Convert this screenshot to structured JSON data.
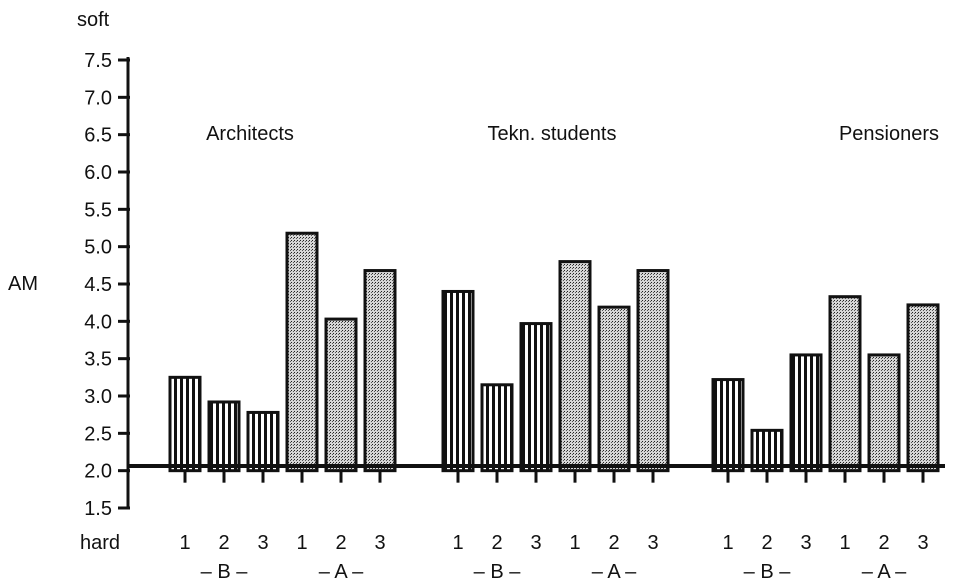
{
  "chart_data": {
    "type": "bar",
    "y_axis": {
      "label": "AM",
      "top_label": "soft",
      "bottom_label": "hard",
      "ticks": [
        "7.5",
        "7.0",
        "6.5",
        "6.0",
        "5.5",
        "5.0",
        "4.5",
        "4.0",
        "3.5",
        "3.0",
        "2.5",
        "2.0",
        "1.5"
      ],
      "ylim": [
        1.5,
        7.5
      ],
      "baseline": 2.0
    },
    "category_labels": [
      "1",
      "2",
      "3",
      "1",
      "2",
      "3"
    ],
    "subgroup_labels": [
      {
        "text": "–  B  –"
      },
      {
        "text": "–  A  –"
      }
    ],
    "groups": [
      {
        "name": "Architects",
        "values": [
          3.25,
          2.92,
          2.78,
          5.18,
          4.03,
          4.68
        ]
      },
      {
        "name": "Tekn. students",
        "values": [
          4.4,
          3.15,
          3.97,
          4.8,
          4.19,
          4.68
        ]
      },
      {
        "name": "Pensioners",
        "values": [
          3.22,
          2.54,
          3.55,
          4.33,
          3.55,
          4.22
        ]
      }
    ],
    "series_patterns": [
      "stripes",
      "stripes",
      "stripes",
      "dots",
      "dots",
      "dots"
    ],
    "colors": {
      "ink": "#111111",
      "background": "#ffffff"
    }
  }
}
